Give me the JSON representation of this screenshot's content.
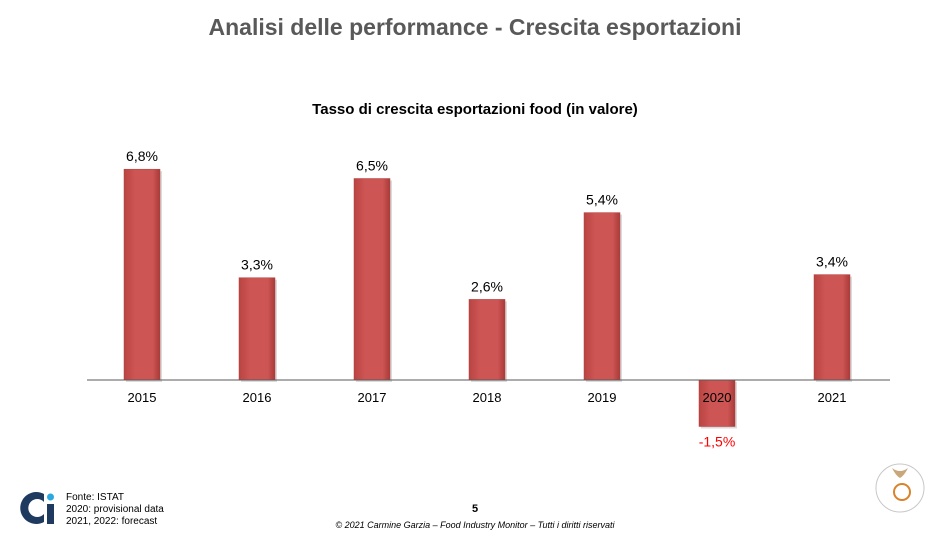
{
  "header": {
    "title": "Analisi delle performance - Crescita esportazioni"
  },
  "chart_data": {
    "type": "bar",
    "title": "Tasso di crescita esportazioni food (in valore)",
    "categories": [
      "2015",
      "2016",
      "2017",
      "2018",
      "2019",
      "2020",
      "2021"
    ],
    "values": [
      6.8,
      3.3,
      6.5,
      2.6,
      5.4,
      -1.5,
      3.4
    ],
    "data_labels": [
      "6,8%",
      "3,3%",
      "6,5%",
      "2,6%",
      "5,4%",
      "-1,5%",
      "3,4%"
    ],
    "bar_color": "#cd5553",
    "negative_label_color": "#ff0000",
    "grid": false,
    "legend": "none"
  },
  "footer": {
    "source_lines": [
      "Fonte: ISTAT",
      "2020: provisional data",
      "2021, 2022: forecast"
    ],
    "page_number": "5",
    "copyright": "© 2021 Carmine Garzia – Food Industry Monitor – Tutti i diritti riservati"
  }
}
